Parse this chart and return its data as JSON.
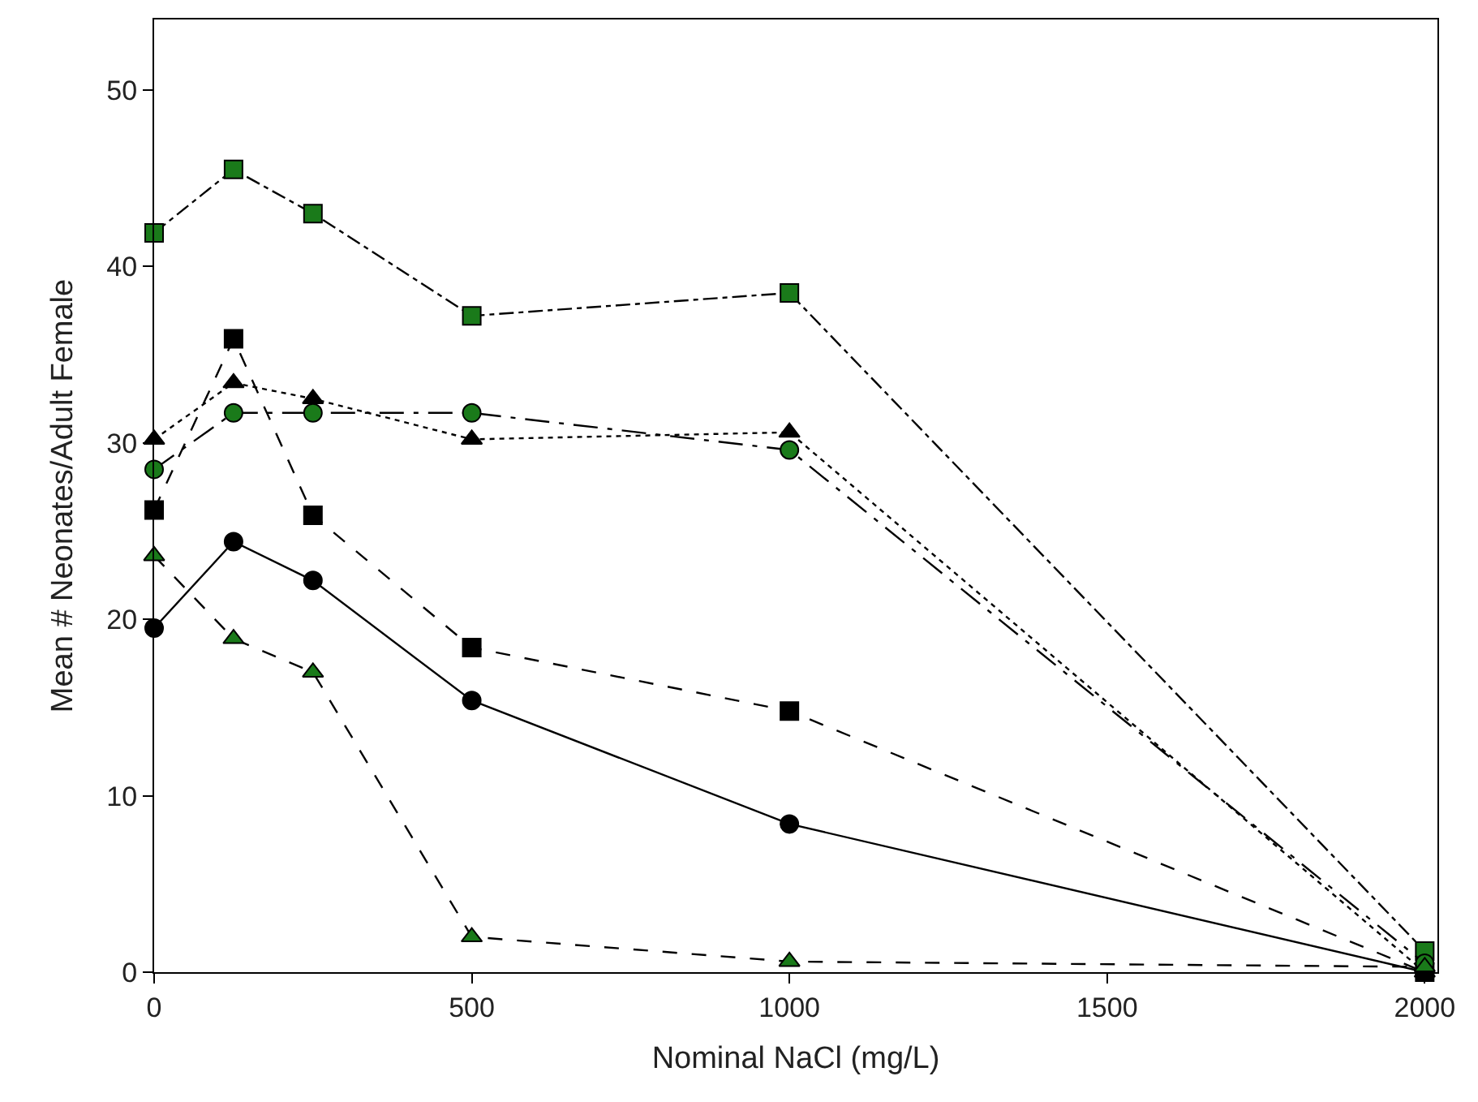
{
  "chart_data": {
    "type": "line",
    "xlabel": "Nominal NaCl (mg/L)",
    "ylabel": "Mean # Neonates/Adult Female",
    "x": [
      0,
      125,
      250,
      500,
      1000,
      2000
    ],
    "xlim": [
      0,
      2020
    ],
    "xticks": [
      0,
      500,
      1000,
      1500,
      2000
    ],
    "ylim": [
      0,
      54
    ],
    "yticks": [
      0,
      10,
      20,
      30,
      40,
      50
    ],
    "series": [
      {
        "color": "#000000",
        "marker": "circle",
        "line_style": "solid",
        "values": [
          19.5,
          24.4,
          22.2,
          15.4,
          8.4,
          0
        ]
      },
      {
        "color": "#000000",
        "marker": "square",
        "line_style": "dashed",
        "values": [
          26.2,
          35.9,
          25.9,
          18.4,
          14.8,
          0
        ]
      },
      {
        "color": "#000000",
        "marker": "triangle",
        "line_style": "dotted",
        "values": [
          30.2,
          33.4,
          32.5,
          30.2,
          30.6,
          0
        ]
      },
      {
        "color": "#1a7a1a",
        "marker": "square",
        "line_style": "dashdot",
        "values": [
          41.9,
          45.5,
          43.0,
          37.2,
          38.5,
          1.2
        ]
      },
      {
        "color": "#1a7a1a",
        "marker": "circle",
        "line_style": "longdashdot",
        "values": [
          28.5,
          31.7,
          31.7,
          31.7,
          29.6,
          0.5
        ]
      },
      {
        "color": "#1a7a1a",
        "marker": "triangle",
        "line_style": "dashed",
        "values": [
          23.6,
          18.9,
          17.0,
          2.0,
          0.6,
          0.3
        ]
      }
    ]
  }
}
